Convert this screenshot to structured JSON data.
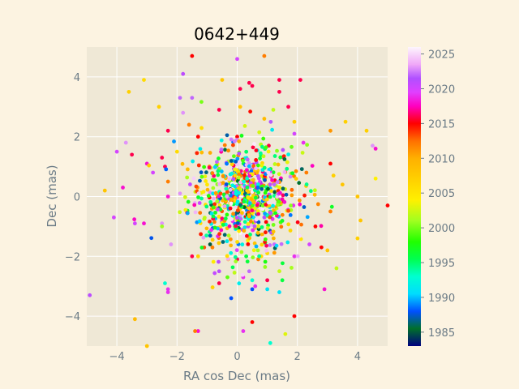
{
  "chart_data": {
    "type": "scatter",
    "title": "0642+449",
    "xlabel": "RA cos Dec (mas)",
    "ylabel": "Dec (mas)",
    "xlim": [
      -5,
      5
    ],
    "ylim": [
      -5,
      5
    ],
    "xticks": [
      -4,
      -2,
      0,
      2,
      4
    ],
    "yticks": [
      -4,
      -2,
      0,
      2,
      4
    ],
    "grid": true,
    "background": "#efe8d6",
    "figure_background": "#fcf3e1",
    "colorbar": {
      "label": "",
      "range": [
        1983,
        2026
      ],
      "ticks": [
        1985,
        1990,
        1995,
        2000,
        2005,
        2010,
        2015,
        2020,
        2025
      ],
      "colormap": "gist_ncar",
      "stops": [
        {
          "value": 1983.0,
          "color": "#000080"
        },
        {
          "value": 1985.5,
          "color": "#00702a"
        },
        {
          "value": 1988.0,
          "color": "#0050ff"
        },
        {
          "value": 1990.5,
          "color": "#00dcff"
        },
        {
          "value": 1993.0,
          "color": "#00ffd0"
        },
        {
          "value": 1995.5,
          "color": "#00ff50"
        },
        {
          "value": 1998.0,
          "color": "#20ff00"
        },
        {
          "value": 2001.0,
          "color": "#a0ff20"
        },
        {
          "value": 2004.0,
          "color": "#fff000"
        },
        {
          "value": 2007.0,
          "color": "#ffd000"
        },
        {
          "value": 2010.0,
          "color": "#ffb000"
        },
        {
          "value": 2012.5,
          "color": "#ff7000"
        },
        {
          "value": 2015.0,
          "color": "#ff0000"
        },
        {
          "value": 2017.5,
          "color": "#ff00c0"
        },
        {
          "value": 2019.5,
          "color": "#e040ff"
        },
        {
          "value": 2021.5,
          "color": "#b050ff"
        },
        {
          "value": 2023.5,
          "color": "#f0a8f8"
        },
        {
          "value": 2026.0,
          "color": "#fdf6fd"
        }
      ]
    },
    "series": [
      {
        "marker": "dot",
        "points": [
          [
            -1.5,
            4.7,
            2015
          ],
          [
            0.0,
            4.6,
            2020
          ],
          [
            0.9,
            4.7,
            2012
          ],
          [
            -1.8,
            4.1,
            2021
          ],
          [
            -0.5,
            3.9,
            2008
          ],
          [
            -3.1,
            3.9,
            2006
          ],
          [
            -3.6,
            3.5,
            2007
          ],
          [
            0.1,
            3.6,
            2016
          ],
          [
            0.4,
            3.8,
            2016
          ],
          [
            0.5,
            3.7,
            2016
          ],
          [
            1.4,
            3.9,
            2016
          ],
          [
            2.1,
            3.9,
            2016
          ],
          [
            1.4,
            3.5,
            2016
          ],
          [
            1.7,
            3.0,
            2016
          ],
          [
            -1.5,
            3.3,
            2022
          ],
          [
            -1.9,
            3.3,
            2022
          ],
          [
            -2.6,
            3.0,
            2007
          ],
          [
            -0.6,
            2.9,
            2016
          ],
          [
            0.1,
            3.0,
            2008
          ],
          [
            1.2,
            2.9,
            2002
          ],
          [
            0.9,
            2.6,
            2009
          ],
          [
            -1.8,
            2.8,
            2023
          ],
          [
            -1.6,
            2.4,
            2012
          ],
          [
            -2.3,
            2.2,
            2016
          ],
          [
            -1.3,
            2.0,
            2015
          ],
          [
            0.0,
            2.0,
            2015
          ],
          [
            1.9,
            2.1,
            2020
          ],
          [
            2.2,
            1.8,
            2019
          ],
          [
            3.1,
            2.2,
            2011
          ],
          [
            3.6,
            2.5,
            2007
          ],
          [
            4.3,
            2.2,
            2007
          ],
          [
            1.9,
            2.5,
            2007
          ],
          [
            -4.0,
            1.5,
            2020
          ],
          [
            -3.5,
            1.4,
            2016
          ],
          [
            -3.7,
            1.8,
            2023
          ],
          [
            -2.5,
            1.3,
            2016
          ],
          [
            -2.0,
            1.5,
            2006
          ],
          [
            -3.0,
            1.1,
            2018
          ],
          [
            -2.8,
            0.8,
            2020
          ],
          [
            -2.4,
            1.0,
            2016
          ],
          [
            3.1,
            1.1,
            2015
          ],
          [
            3.2,
            0.7,
            2007
          ],
          [
            4.6,
            1.6,
            2018
          ],
          [
            4.5,
            1.7,
            2023
          ],
          [
            2.3,
            0.8,
            2012
          ],
          [
            -4.4,
            0.2,
            2008
          ],
          [
            -3.8,
            0.3,
            2018
          ],
          [
            -2.3,
            0.5,
            2012
          ],
          [
            -2.3,
            0.0,
            2018
          ],
          [
            -1.9,
            0.1,
            2023
          ],
          [
            4.0,
            0.0,
            2008
          ],
          [
            4.6,
            0.6,
            2004
          ],
          [
            5.0,
            -0.3,
            2015
          ],
          [
            3.5,
            0.4,
            2008
          ],
          [
            -4.1,
            -0.7,
            2020
          ],
          [
            -3.4,
            -0.9,
            2020
          ],
          [
            -3.1,
            -0.9,
            2018
          ],
          [
            -2.5,
            -0.9,
            2023
          ],
          [
            -2.5,
            -1.0,
            2001
          ],
          [
            4.1,
            -0.8,
            2008
          ],
          [
            3.1,
            -0.5,
            2012
          ],
          [
            2.4,
            -1.6,
            2020
          ],
          [
            2.8,
            -1.7,
            2015
          ],
          [
            3.0,
            -1.8,
            2008
          ],
          [
            4.0,
            -1.4,
            2007
          ],
          [
            2.6,
            -1.0,
            2015
          ],
          [
            -2.2,
            -1.6,
            2023
          ],
          [
            -1.5,
            -2.0,
            2016
          ],
          [
            -1.3,
            -2.0,
            2007
          ],
          [
            -0.9,
            -1.6,
            1985
          ],
          [
            -0.3,
            -2.1,
            2008
          ],
          [
            0.0,
            -2.1,
            2016
          ],
          [
            0.3,
            -2.0,
            1996
          ],
          [
            0.7,
            -2.1,
            2012
          ],
          [
            0.8,
            -2.0,
            2006
          ],
          [
            1.0,
            -1.9,
            2006
          ],
          [
            1.9,
            -2.0,
            2019
          ],
          [
            3.3,
            -2.4,
            2002
          ],
          [
            -0.6,
            -2.5,
            2021
          ],
          [
            0.2,
            -2.7,
            2019
          ],
          [
            0.4,
            -2.5,
            2022
          ],
          [
            0.5,
            -2.8,
            1993
          ],
          [
            0.5,
            -3.1,
            1988
          ],
          [
            0.6,
            -3.0,
            2019
          ],
          [
            1.0,
            -2.8,
            2016
          ],
          [
            1.0,
            -3.1,
            1991
          ],
          [
            1.5,
            -2.8,
            1996
          ],
          [
            1.4,
            -3.2,
            1991
          ],
          [
            2.9,
            -3.1,
            2018
          ],
          [
            -2.4,
            -2.9,
            1993
          ],
          [
            -2.3,
            -3.2,
            2019
          ],
          [
            -0.6,
            -2.9,
            2016
          ],
          [
            -0.2,
            -3.4,
            1988
          ],
          [
            -4.9,
            -3.3,
            2021
          ],
          [
            -3.4,
            -4.1,
            2009
          ],
          [
            -1.3,
            -4.5,
            2018
          ],
          [
            -1.4,
            -4.5,
            2012
          ],
          [
            0.2,
            -4.5,
            2019
          ],
          [
            0.5,
            -4.2,
            2015
          ],
          [
            1.1,
            -4.9,
            1993
          ],
          [
            1.6,
            -4.6,
            2003
          ],
          [
            1.9,
            -4.0,
            2015
          ],
          [
            -3.0,
            -5.0,
            2008
          ],
          [
            -2.3,
            -3.1,
            2019
          ]
        ],
        "cluster": {
          "center": [
            0.2,
            0.0
          ],
          "spread": [
            0.9,
            0.9
          ],
          "count": 800,
          "note": "dense cloud of several hundred overlapping dots within |x|,|y| < 2 mas, colours spanning all epochs"
        }
      }
    ]
  }
}
